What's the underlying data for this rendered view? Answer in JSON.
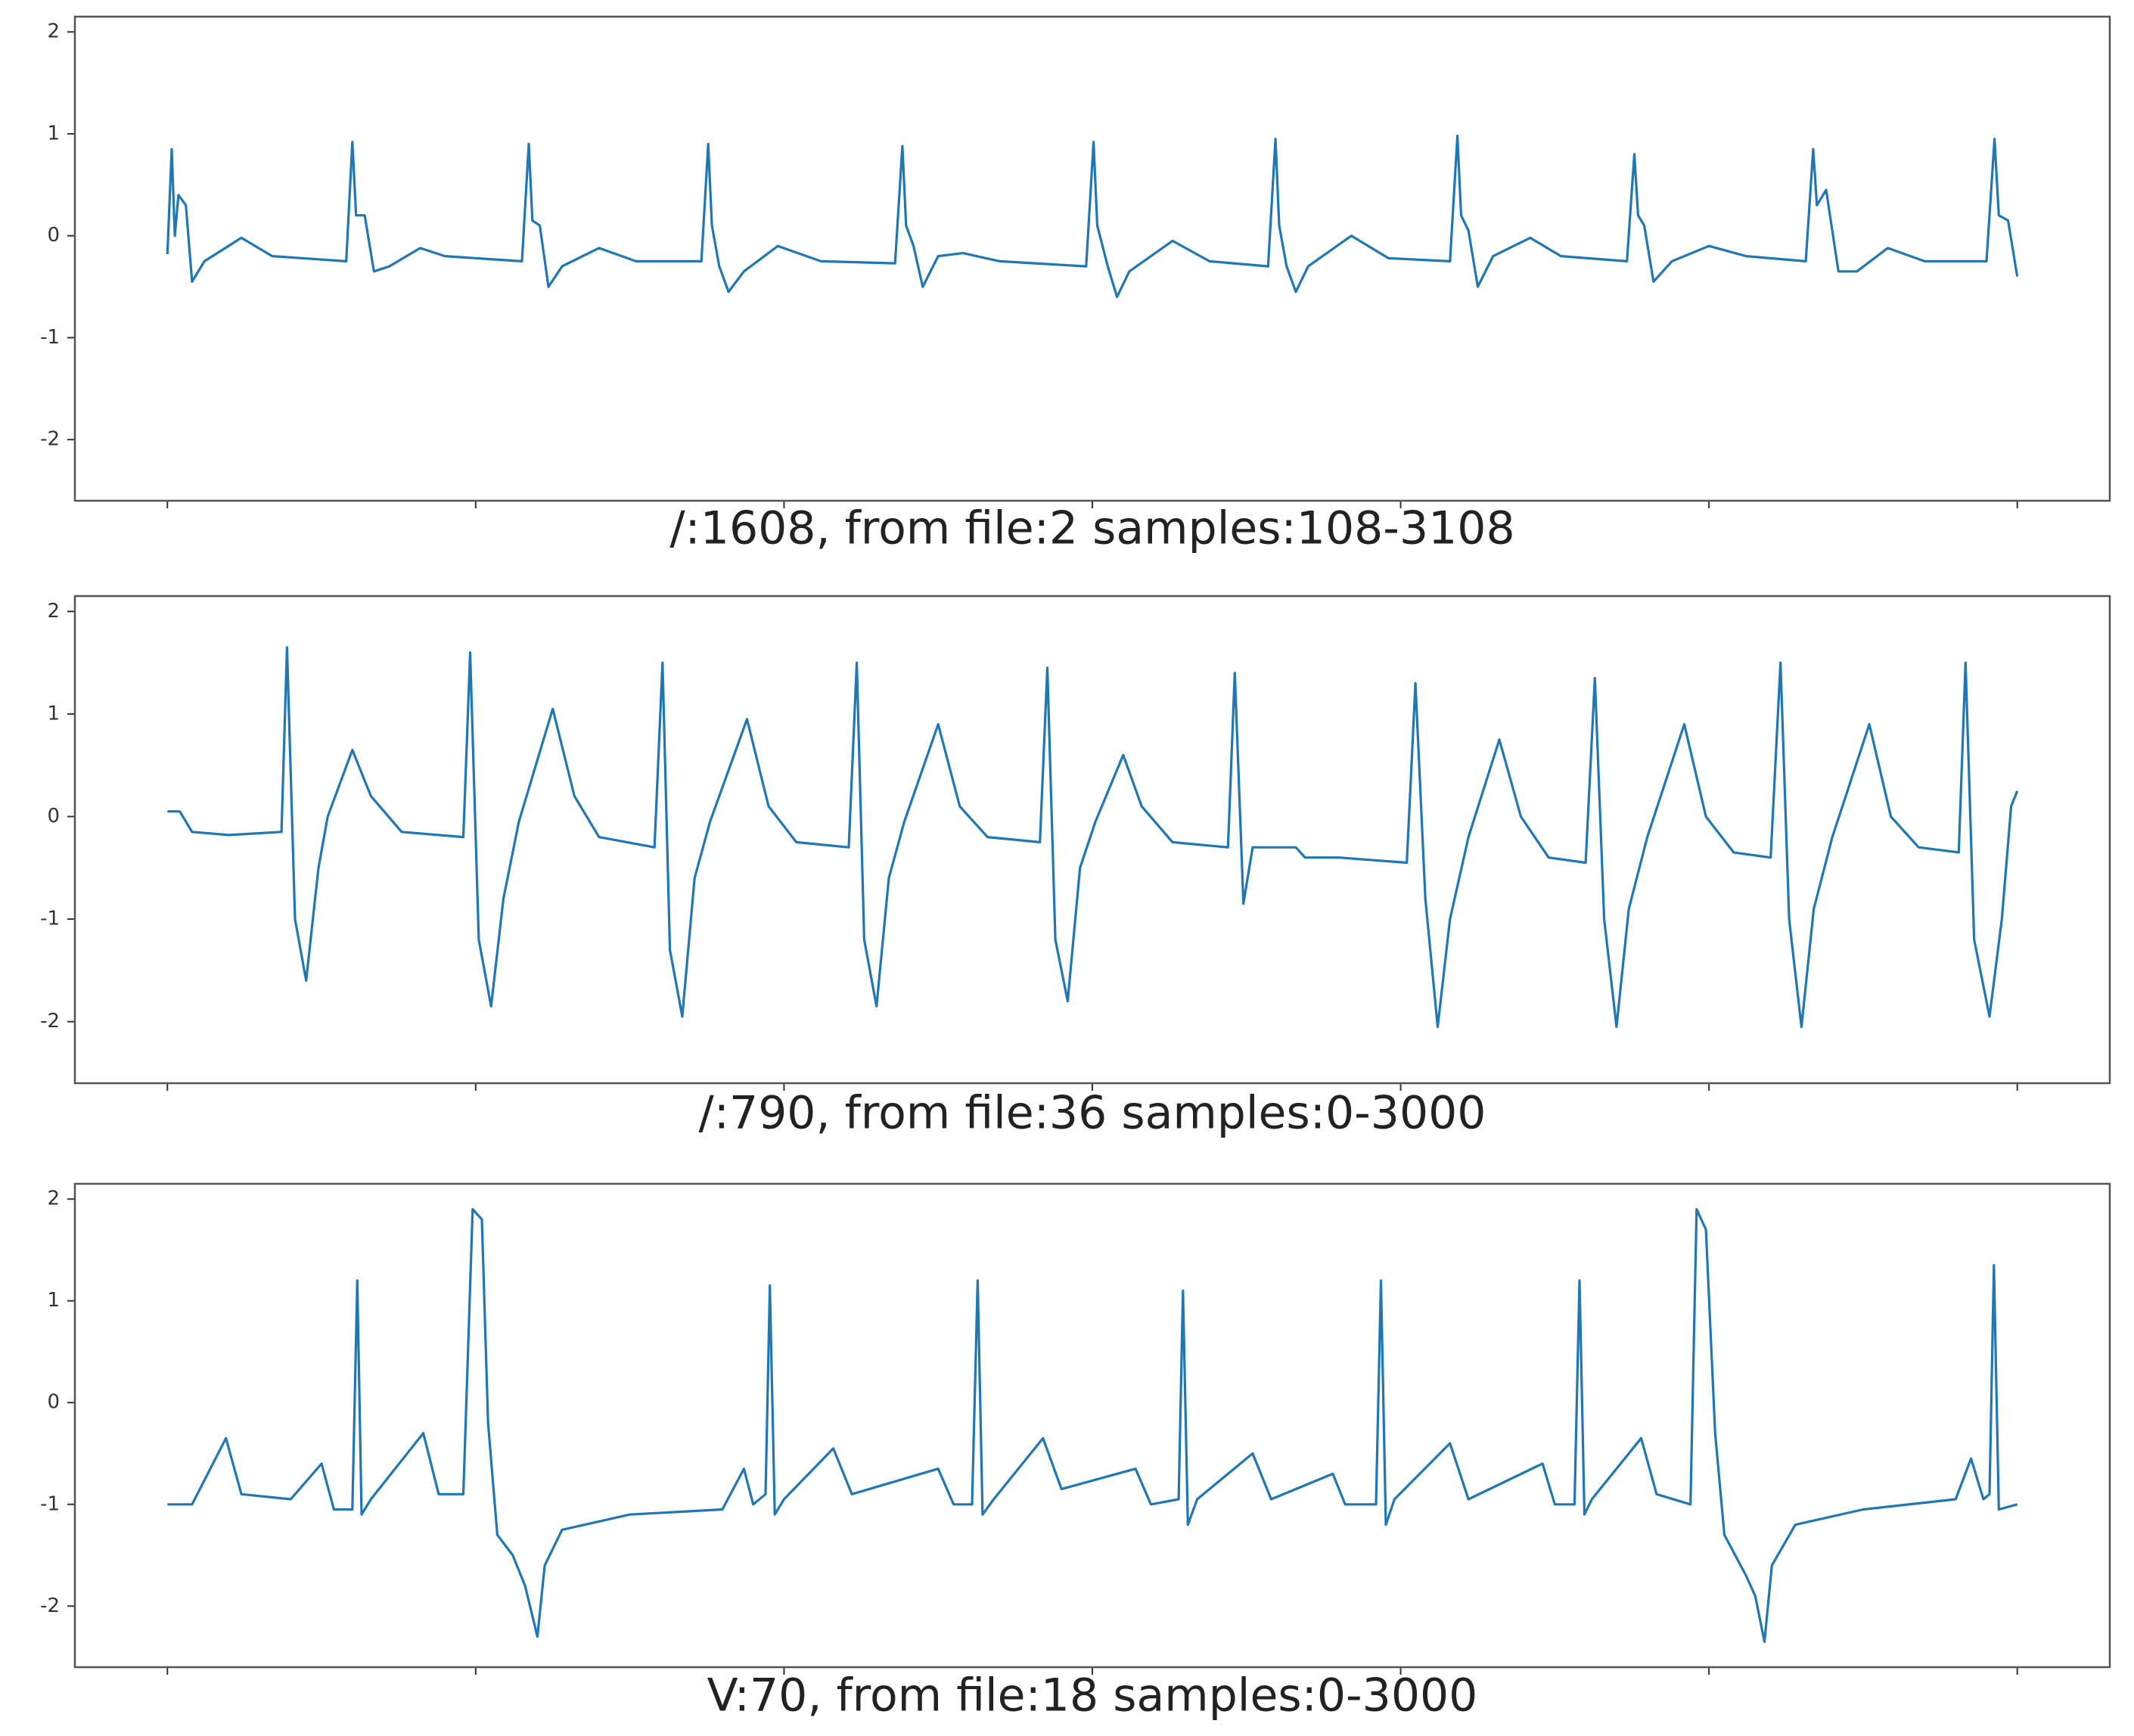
{
  "chart_data": [
    {
      "type": "line",
      "x_label": "/:1608, from file:2 samples:108-3108",
      "color": "#1f77b4",
      "xlim": [
        -150,
        3150
      ],
      "ylim": [
        -2.6,
        2.15
      ],
      "yticks": [
        -2,
        -1,
        0,
        1,
        2
      ],
      "xticks": [
        0,
        500,
        1000,
        1500,
        2000,
        2500,
        3000
      ],
      "x": [
        0,
        7,
        12,
        18,
        30,
        40,
        60,
        120,
        170,
        290,
        300,
        306,
        320,
        335,
        360,
        410,
        450,
        575,
        586,
        592,
        604,
        618,
        640,
        700,
        760,
        866,
        877,
        883,
        895,
        910,
        935,
        990,
        1060,
        1180,
        1192,
        1198,
        1210,
        1225,
        1250,
        1290,
        1350,
        1490,
        1502,
        1508,
        1525,
        1540,
        1560,
        1630,
        1690,
        1785,
        1797,
        1803,
        1815,
        1830,
        1850,
        1920,
        1980,
        2080,
        2092,
        2098,
        2110,
        2125,
        2150,
        2210,
        2260,
        2367,
        2379,
        2385,
        2395,
        2410,
        2440,
        2500,
        2560,
        2657,
        2669,
        2675,
        2690,
        2710,
        2740,
        2790,
        2850,
        2950,
        2963,
        2970,
        2985,
        3000
      ],
      "values": [
        -0.18,
        0.85,
        0.0,
        0.4,
        0.3,
        -0.45,
        -0.25,
        -0.02,
        -0.2,
        -0.25,
        0.92,
        0.2,
        0.2,
        -0.35,
        -0.3,
        -0.12,
        -0.2,
        -0.25,
        0.9,
        0.15,
        0.1,
        -0.5,
        -0.3,
        -0.12,
        -0.25,
        -0.25,
        0.9,
        0.1,
        -0.3,
        -0.55,
        -0.35,
        -0.1,
        -0.25,
        -0.27,
        0.88,
        0.1,
        -0.1,
        -0.5,
        -0.2,
        -0.17,
        -0.25,
        -0.3,
        0.92,
        0.1,
        -0.3,
        -0.6,
        -0.35,
        -0.05,
        -0.25,
        -0.3,
        0.95,
        0.1,
        -0.3,
        -0.55,
        -0.3,
        0.0,
        -0.22,
        -0.25,
        0.98,
        0.2,
        0.05,
        -0.5,
        -0.2,
        -0.02,
        -0.2,
        -0.25,
        0.8,
        0.2,
        0.1,
        -0.45,
        -0.25,
        -0.1,
        -0.2,
        -0.25,
        0.85,
        0.3,
        0.45,
        -0.35,
        -0.35,
        -0.12,
        -0.25,
        -0.25,
        0.95,
        0.2,
        0.15,
        -0.4
      ]
    },
    {
      "type": "line",
      "x_label": "/:790, from file:36 samples:0-3000",
      "color": "#1f77b4",
      "xlim": [
        -150,
        3150
      ],
      "ylim": [
        -2.6,
        2.15
      ],
      "yticks": [
        -2,
        -1,
        0,
        1,
        2
      ],
      "xticks": [
        0,
        500,
        1000,
        1500,
        2000,
        2500,
        3000
      ],
      "x": [
        0,
        20,
        40,
        100,
        185,
        194,
        207,
        225,
        245,
        260,
        300,
        330,
        380,
        480,
        491,
        505,
        525,
        545,
        570,
        625,
        660,
        700,
        790,
        803,
        815,
        835,
        855,
        880,
        940,
        975,
        1020,
        1105,
        1118,
        1130,
        1150,
        1170,
        1195,
        1250,
        1285,
        1330,
        1415,
        1427,
        1440,
        1460,
        1480,
        1505,
        1550,
        1580,
        1630,
        1720,
        1731,
        1745,
        1760,
        1790,
        1830,
        1845,
        1900,
        2010,
        2024,
        2040,
        2060,
        2080,
        2110,
        2160,
        2195,
        2240,
        2300,
        2315,
        2330,
        2350,
        2370,
        2400,
        2460,
        2495,
        2540,
        2600,
        2616,
        2630,
        2650,
        2670,
        2700,
        2760,
        2795,
        2840,
        2905,
        2916,
        2930,
        2955,
        2975,
        2990,
        3000
      ],
      "values": [
        0.05,
        0.05,
        -0.15,
        -0.18,
        -0.15,
        1.65,
        -1.0,
        -1.6,
        -0.5,
        0.0,
        0.65,
        0.2,
        -0.15,
        -0.2,
        1.6,
        -1.2,
        -1.85,
        -0.8,
        -0.05,
        1.05,
        0.2,
        -0.2,
        -0.3,
        1.5,
        -1.3,
        -1.95,
        -0.6,
        -0.05,
        0.95,
        0.1,
        -0.25,
        -0.3,
        1.5,
        -1.2,
        -1.85,
        -0.6,
        -0.05,
        0.9,
        0.1,
        -0.2,
        -0.25,
        1.45,
        -1.2,
        -1.8,
        -0.5,
        -0.05,
        0.6,
        0.1,
        -0.25,
        -0.3,
        1.4,
        -0.85,
        -0.3,
        -0.3,
        -0.3,
        -0.4,
        -0.4,
        -0.45,
        1.3,
        -0.8,
        -2.05,
        -1.0,
        -0.2,
        0.75,
        0.0,
        -0.4,
        -0.45,
        1.35,
        -1.0,
        -2.05,
        -0.9,
        -0.2,
        0.9,
        0.0,
        -0.35,
        -0.4,
        1.5,
        -1.0,
        -2.05,
        -0.9,
        -0.2,
        0.9,
        0.0,
        -0.3,
        -0.35,
        1.5,
        -1.2,
        -1.95,
        -1.0,
        0.1,
        0.25
      ]
    },
    {
      "type": "line",
      "x_label": "V:70, from file:18 samples:0-3000",
      "color": "#1f77b4",
      "xlim": [
        -150,
        3150
      ],
      "ylim": [
        -2.6,
        2.15
      ],
      "yticks": [
        -2,
        -1,
        0,
        1,
        2
      ],
      "xticks": [
        0,
        500,
        1000,
        1500,
        2000,
        2500,
        3000
      ],
      "x": [
        0,
        40,
        95,
        120,
        200,
        250,
        270,
        300,
        308,
        315,
        330,
        415,
        440,
        480,
        495,
        510,
        520,
        535,
        560,
        580,
        600,
        612,
        640,
        750,
        900,
        935,
        950,
        970,
        977,
        985,
        1000,
        1080,
        1110,
        1250,
        1275,
        1305,
        1314,
        1322,
        1340,
        1420,
        1450,
        1570,
        1595,
        1640,
        1647,
        1655,
        1670,
        1760,
        1790,
        1890,
        1910,
        1960,
        1968,
        1976,
        1990,
        2080,
        2110,
        2230,
        2250,
        2282,
        2290,
        2298,
        2310,
        2390,
        2415,
        2470,
        2480,
        2495,
        2510,
        2525,
        2560,
        2575,
        2590,
        2602,
        2640,
        2750,
        2900,
        2925,
        2945,
        2955,
        2962,
        2970,
        3000
      ],
      "values": [
        -1.0,
        -1.0,
        -0.35,
        -0.9,
        -0.95,
        -0.6,
        -1.05,
        -1.05,
        1.2,
        -1.1,
        -0.95,
        -0.3,
        -0.9,
        -0.9,
        1.9,
        1.8,
        -0.2,
        -1.3,
        -1.5,
        -1.8,
        -2.3,
        -1.6,
        -1.25,
        -1.1,
        -1.05,
        -0.65,
        -1.0,
        -0.9,
        1.15,
        -1.1,
        -0.95,
        -0.45,
        -0.9,
        -0.65,
        -1.0,
        -1.0,
        1.2,
        -1.1,
        -0.95,
        -0.35,
        -0.85,
        -0.65,
        -1.0,
        -0.95,
        1.1,
        -1.2,
        -0.95,
        -0.5,
        -0.95,
        -0.7,
        -1.0,
        -1.0,
        1.2,
        -1.2,
        -0.95,
        -0.4,
        -0.95,
        -0.6,
        -1.0,
        -1.0,
        1.2,
        -1.1,
        -0.95,
        -0.35,
        -0.9,
        -1.0,
        1.9,
        1.7,
        -0.3,
        -1.3,
        -1.7,
        -1.9,
        -2.35,
        -1.6,
        -1.2,
        -1.05,
        -0.95,
        -0.55,
        -0.95,
        -0.9,
        1.35,
        -1.05,
        -1.0
      ]
    }
  ]
}
